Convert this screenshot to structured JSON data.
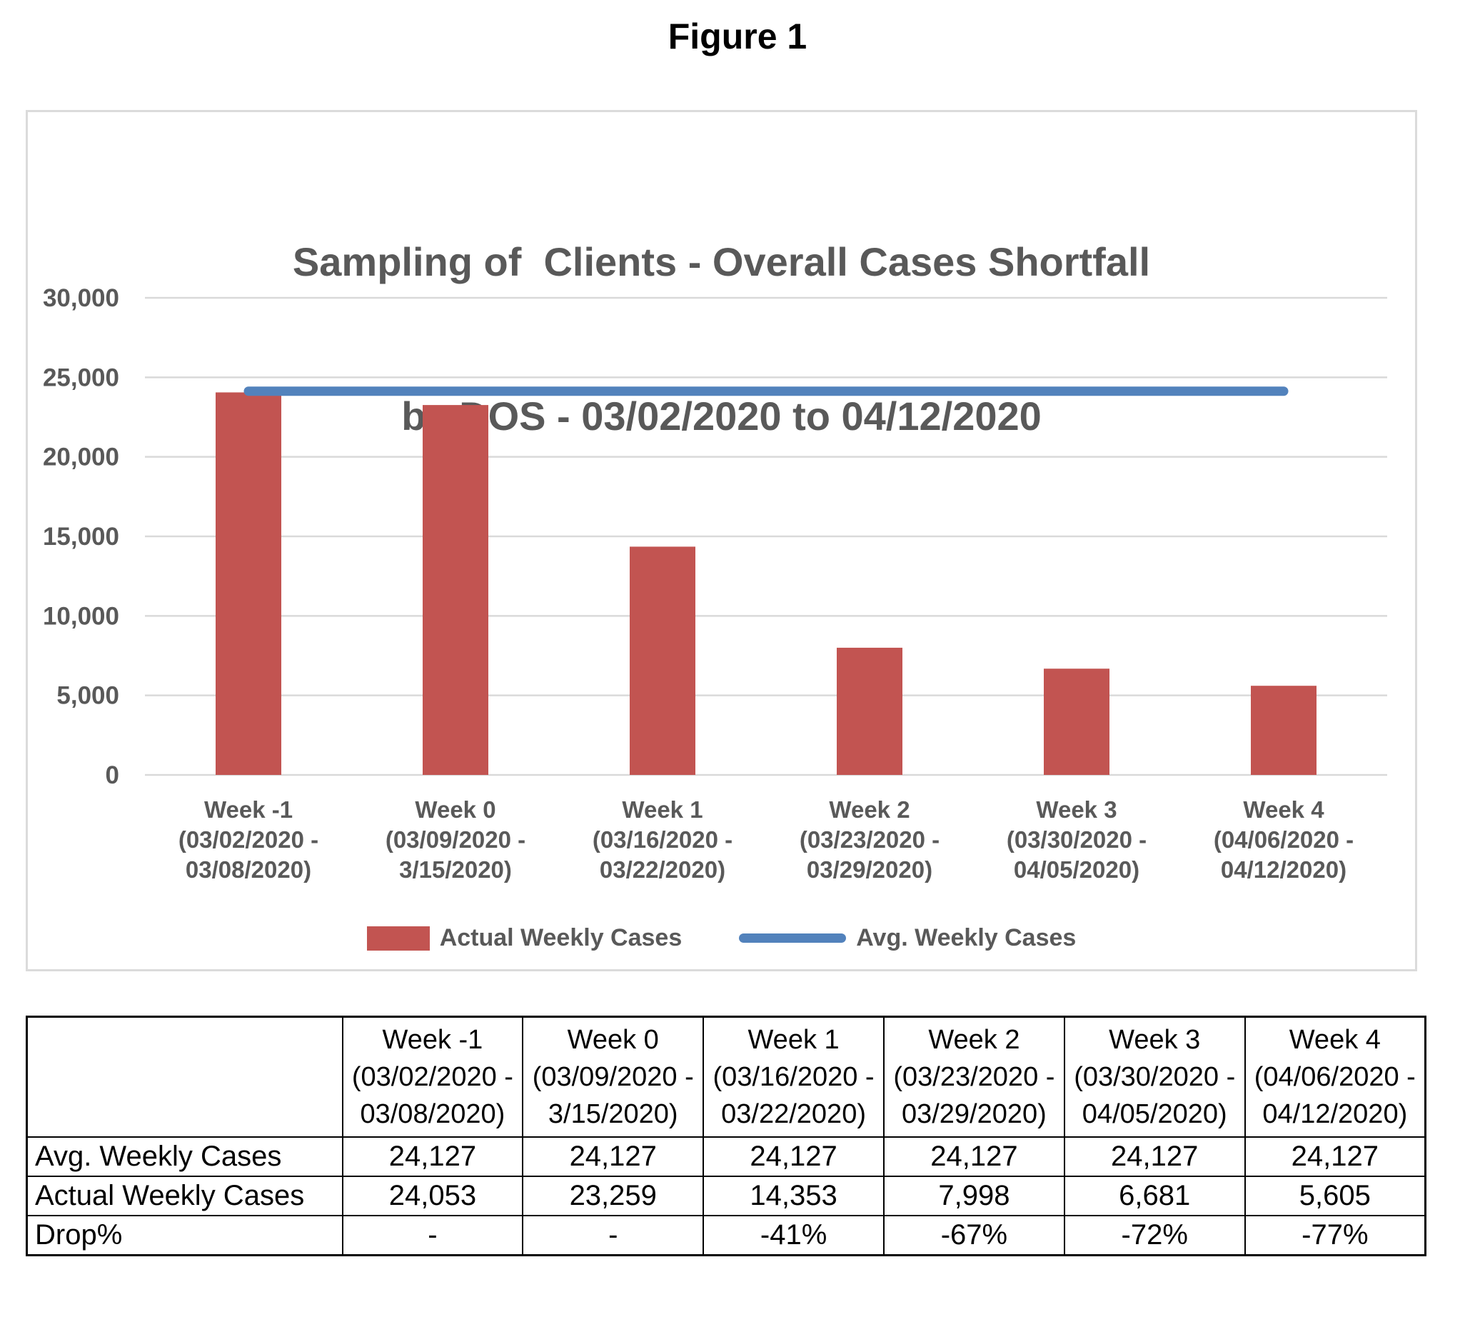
{
  "figure_label": "Figure 1",
  "chart_data": {
    "type": "bar",
    "title": "Sampling of  Clients - Overall Cases Shortfall by DOS - 03/02/2020 to 04/12/2020",
    "title_lines": [
      "Sampling of  Clients - Overall Cases Shortfall",
      "by DOS - 03/02/2020 to 04/12/2020"
    ],
    "categories_lines": [
      [
        "Week -1",
        "(03/02/2020 -",
        "03/08/2020)"
      ],
      [
        "Week 0",
        "(03/09/2020 -",
        "3/15/2020)"
      ],
      [
        "Week 1",
        "(03/16/2020 -",
        "03/22/2020)"
      ],
      [
        "Week 2",
        "(03/23/2020 -",
        "03/29/2020)"
      ],
      [
        "Week 3",
        "(03/30/2020 -",
        "04/05/2020)"
      ],
      [
        "Week 4",
        "(04/06/2020 -",
        "04/12/2020)"
      ]
    ],
    "series": [
      {
        "name": "Actual Weekly Cases",
        "type": "bar",
        "color": "#C25451",
        "values": [
          24053,
          23259,
          14353,
          7998,
          6681,
          5605
        ]
      },
      {
        "name": "Avg. Weekly Cases",
        "type": "line",
        "color": "#5282BC",
        "values": [
          24127,
          24127,
          24127,
          24127,
          24127,
          24127
        ]
      }
    ],
    "ylim": [
      0,
      30000
    ],
    "ytick_step": 5000,
    "grid": true,
    "legend_position": "bottom",
    "grid_color": "#D9D9D9",
    "axis_text_color": "#595959",
    "panel_border_color": "#DBDBDB"
  },
  "table": {
    "row_headers": [
      "Avg. Weekly Cases",
      "Actual Weekly Cases",
      "Drop%"
    ],
    "rows": [
      [
        "24,127",
        "24,127",
        "24,127",
        "24,127",
        "24,127",
        "24,127"
      ],
      [
        "24,053",
        "23,259",
        "14,353",
        "7,998",
        "6,681",
        "5,605"
      ],
      [
        "-",
        "-",
        "-41%",
        "-67%",
        "-72%",
        "-77%"
      ]
    ]
  }
}
